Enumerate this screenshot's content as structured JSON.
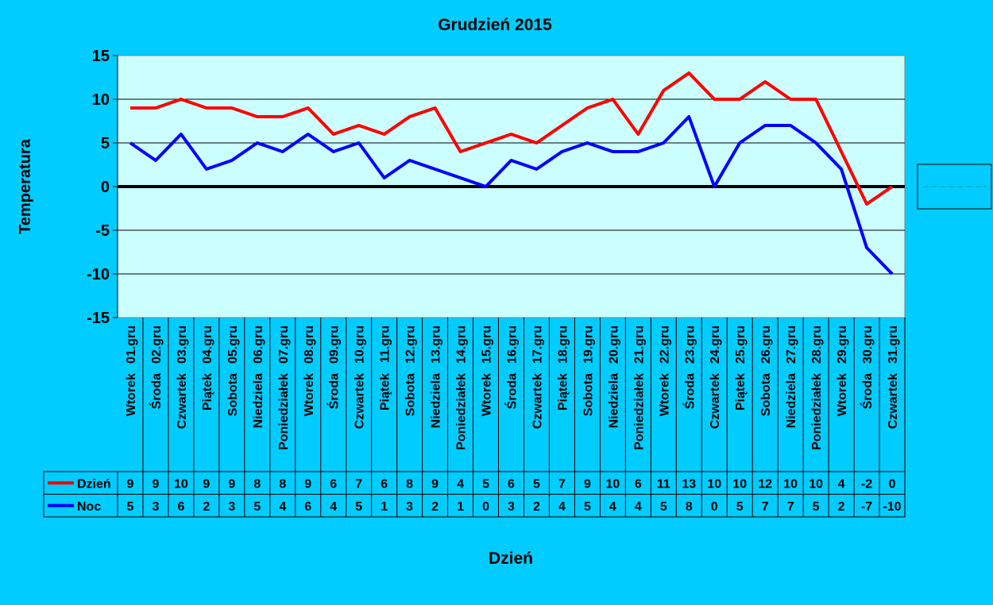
{
  "chart_data": {
    "type": "line",
    "title": "Grudzień 2015",
    "xlabel": "Dzień",
    "ylabel": "Temperatura",
    "ylim": [
      -15,
      15
    ],
    "yticks": [
      15,
      10,
      5,
      0,
      -5,
      -10,
      -15
    ],
    "grid": true,
    "legend": "data-table-left",
    "background_color": "#00ccff",
    "plot_color": "#ccffff",
    "categories_day": [
      "Wtorek",
      "Środa",
      "Czwartek",
      "Piątek",
      "Sobota",
      "Niedziela",
      "Poniedziałek",
      "Wtorek",
      "Środa",
      "Czwartek",
      "Piątek",
      "Sobota",
      "Niedziela",
      "Poniedziałek",
      "Wtorek",
      "Środa",
      "Czwartek",
      "Piątek",
      "Sobota",
      "Niedziela",
      "Poniedziałek",
      "Wtorek",
      "Środa",
      "Czwartek",
      "Piątek",
      "Sobota",
      "Niedziela",
      "Poniedziałek",
      "Wtorek",
      "Środa",
      "Czwartek"
    ],
    "categories_date": [
      "01.gru",
      "02.gru",
      "03.gru",
      "04.gru",
      "05.gru",
      "06.gru",
      "07.gru",
      "08.gru",
      "09.gru",
      "10.gru",
      "11.gru",
      "12.gru",
      "13.gru",
      "14.gru",
      "15.gru",
      "16.gru",
      "17.gru",
      "18.gru",
      "19.gru",
      "20.gru",
      "21.gru",
      "22.gru",
      "23.gru",
      "24.gru",
      "25.gru",
      "26.gru",
      "27.gru",
      "28.gru",
      "29.gru",
      "30.gru",
      "31.gru"
    ],
    "series": [
      {
        "name": "Dzień",
        "color": "#ff0000",
        "values": [
          9,
          9,
          10,
          9,
          9,
          8,
          8,
          9,
          6,
          7,
          6,
          8,
          9,
          4,
          5,
          6,
          5,
          7,
          9,
          10,
          6,
          11,
          13,
          10,
          10,
          12,
          10,
          10,
          4,
          -2,
          0
        ]
      },
      {
        "name": "Noc",
        "color": "#0000ff",
        "values": [
          5,
          3,
          6,
          2,
          3,
          5,
          4,
          6,
          4,
          5,
          1,
          3,
          2,
          1,
          0,
          3,
          2,
          4,
          5,
          4,
          4,
          5,
          8,
          0,
          5,
          7,
          7,
          5,
          2,
          -7,
          -10
        ]
      }
    ]
  }
}
